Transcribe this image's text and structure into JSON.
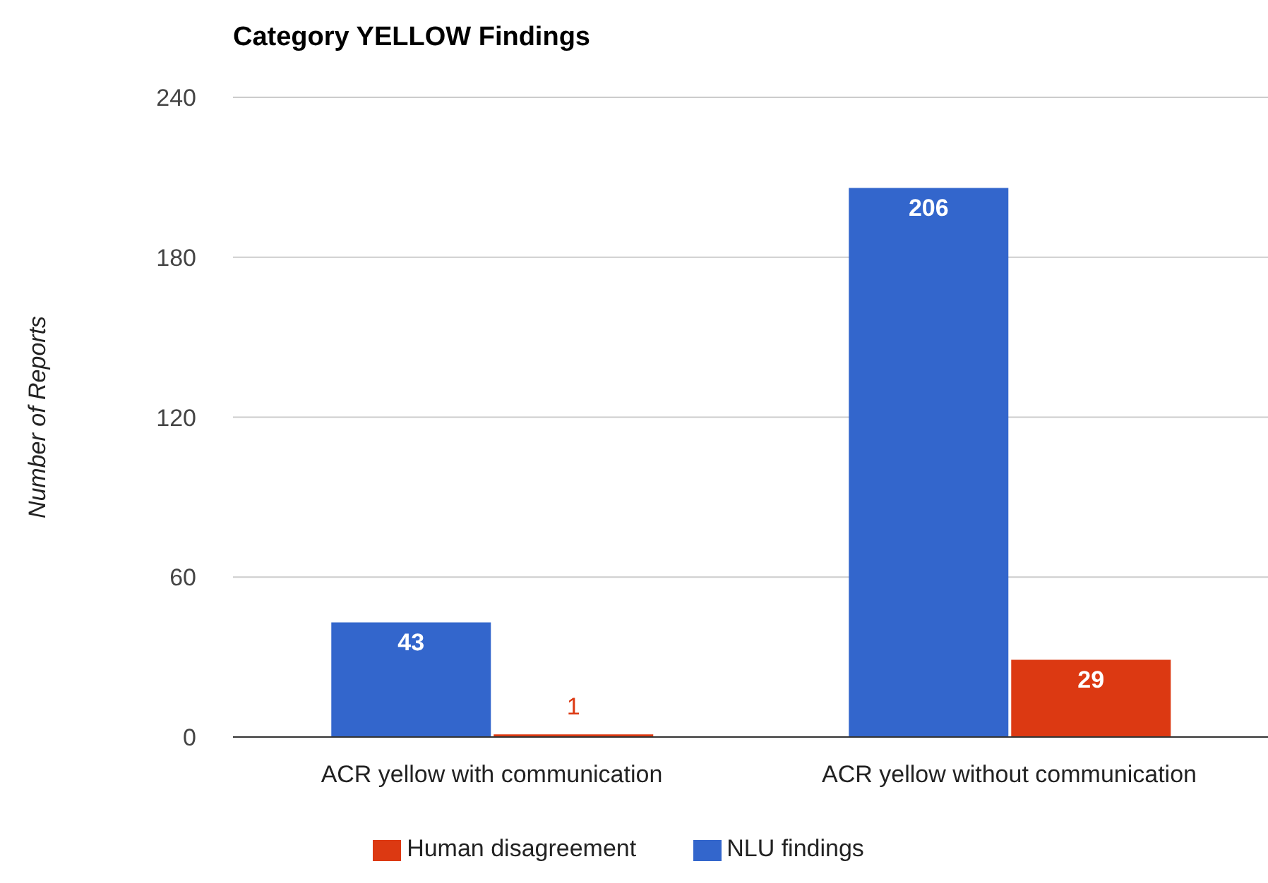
{
  "chart_data": {
    "type": "bar",
    "title": "Category YELLOW Findings",
    "ylabel": "Number of Reports",
    "categories": [
      "ACR yellow with communication",
      "ACR yellow without communication"
    ],
    "series": [
      {
        "name": "NLU findings",
        "color": "#3366cc",
        "values": [
          43,
          206
        ]
      },
      {
        "name": "Human disagreement",
        "color": "#dc3912",
        "values": [
          1,
          29
        ]
      }
    ],
    "ylim": [
      0,
      240
    ],
    "yticks": [
      0,
      60,
      120,
      180,
      240
    ],
    "grid": "y",
    "legend": "bottom",
    "data_labels": true
  }
}
